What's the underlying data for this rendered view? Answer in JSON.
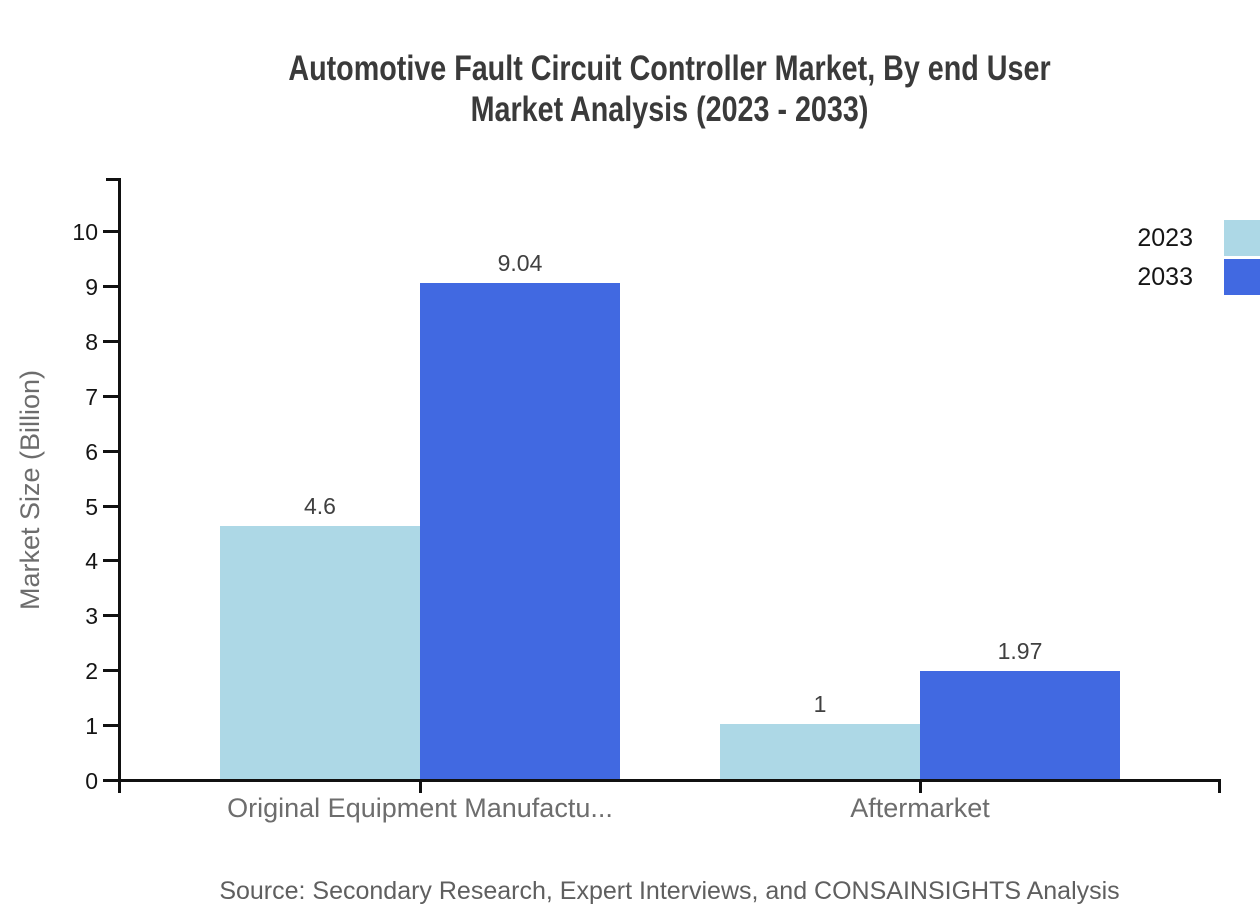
{
  "header": {
    "title_lines": [
      "Automotive Fault Circuit Controller Market, By end User",
      "Market Analysis (2023 - 2033)"
    ]
  },
  "axes": {
    "y_label": "Market Size (Billion)",
    "y_ticks": [
      0,
      1,
      2,
      3,
      4,
      5,
      6,
      7,
      8,
      9,
      10
    ],
    "categories": [
      "Original Equipment Manufactu...",
      "Aftermarket"
    ]
  },
  "legend": {
    "items": [
      {
        "label": "2023",
        "color": "#ADD8E6"
      },
      {
        "label": "2033",
        "color": "#4169E1"
      }
    ]
  },
  "footer": {
    "source": "Source: Secondary Research, Expert Interviews, and CONSAINSIGHTS Analysis"
  },
  "chart_data": {
    "type": "bar",
    "title": "Automotive Fault Circuit Controller Market, By end User Market Analysis (2023 - 2033)",
    "categories": [
      "Original Equipment Manufactu...",
      "Aftermarket"
    ],
    "series": [
      {
        "name": "2023",
        "color": "#ADD8E6",
        "values": [
          4.6,
          1
        ]
      },
      {
        "name": "2033",
        "color": "#4169E1",
        "values": [
          9.04,
          1.97
        ]
      }
    ],
    "xlabel": "",
    "ylabel": "Market Size (Billion)",
    "ylim": [
      0,
      10
    ],
    "y_tick_step": 1,
    "grid": false,
    "legend_position": "top-right",
    "value_labels_shown": true,
    "source": "Source: Secondary Research, Expert Interviews, and CONSAINSIGHTS Analysis"
  }
}
